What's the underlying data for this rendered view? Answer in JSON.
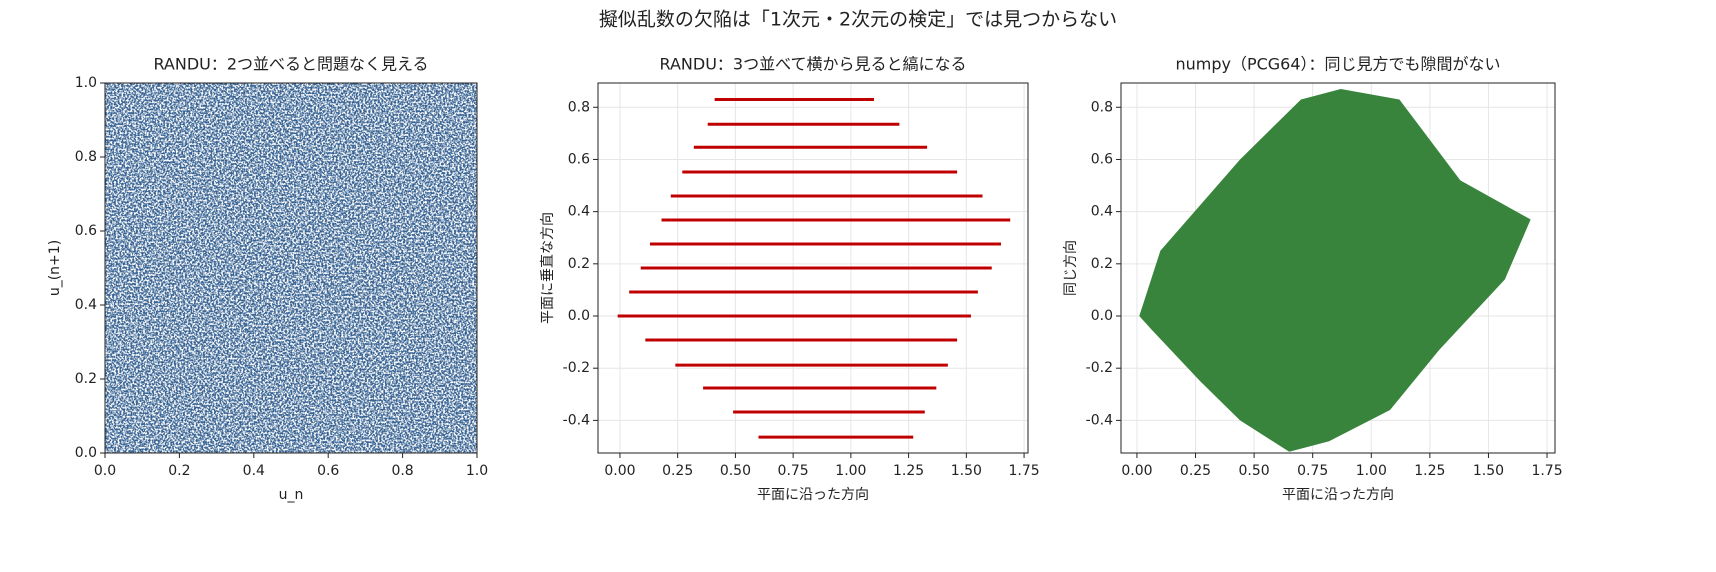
{
  "suptitle": "擬似乱数の欠陥は「1次元・2次元の検定」では見つからない",
  "chart_data": [
    {
      "type": "cloud",
      "title": "RANDU：2つ並べると問題なく見える",
      "xlabel": "u_n",
      "ylabel": "u_(n+1)",
      "color": "#2b5a8c",
      "grid": false,
      "outline_x": [
        0,
        1,
        1,
        0
      ],
      "outline_y": [
        0,
        0,
        1,
        1
      ],
      "xlim": [
        0,
        1
      ],
      "ylim": [
        0,
        1
      ],
      "xticks": [
        {
          "value": 0,
          "label": "0.0"
        },
        0.2,
        0.4,
        0.6,
        0.8,
        {
          "value": 1,
          "label": "1.0"
        }
      ],
      "yticks": [
        {
          "value": 0,
          "label": "0.0"
        },
        0.2,
        0.4,
        0.6,
        0.8,
        {
          "value": 1,
          "label": "1.0"
        }
      ]
    },
    {
      "type": "stripes",
      "title": "RANDU：3つ並べて横から見ると縞になる",
      "xlabel": "平面に沿った方向",
      "ylabel": "平面に垂直な方向",
      "color": "#c00000",
      "grid": true,
      "y": [
        0.83,
        0.735,
        0.647,
        0.552,
        0.46,
        0.368,
        0.276,
        0.184,
        0.092,
        0,
        -0.092,
        -0.188,
        -0.276,
        -0.368,
        -0.464
      ],
      "x_start": [
        0.41,
        0.38,
        0.32,
        0.27,
        0.22,
        0.18,
        0.13,
        0.09,
        0.04,
        -0.01,
        0.11,
        0.24,
        0.36,
        0.49,
        0.6
      ],
      "x_end": [
        1.1,
        1.21,
        1.33,
        1.46,
        1.57,
        1.69,
        1.65,
        1.61,
        1.55,
        1.52,
        1.46,
        1.42,
        1.37,
        1.32,
        1.27
      ],
      "xlim": [
        -0.095,
        1.767
      ],
      "ylim": [
        -0.525,
        0.893
      ],
      "xticks": [
        {
          "value": 0,
          "label": "0.00"
        },
        0.25,
        {
          "value": 0.5,
          "label": "0.50"
        },
        0.75,
        {
          "value": 1,
          "label": "1.00"
        },
        1.25,
        {
          "value": 1.5,
          "label": "1.50"
        },
        1.75
      ],
      "yticks": [
        -0.4,
        -0.2,
        {
          "value": 0,
          "label": "0.0"
        },
        0.2,
        0.4,
        0.6,
        0.8
      ]
    },
    {
      "type": "cloud",
      "title": "numpy（PCG64）：同じ見方でも隙間がない",
      "xlabel": "平面に沿った方向",
      "ylabel": "同じ方向",
      "color": "#2e7d32",
      "grid": true,
      "outline_x": [
        0.01,
        0.1,
        0.44,
        0.7,
        0.87,
        1.12,
        1.38,
        1.68,
        1.57,
        1.29,
        1.08,
        0.82,
        0.65,
        0.44,
        0.27,
        0.06
      ],
      "outline_y": [
        0,
        0.25,
        0.6,
        0.83,
        0.87,
        0.83,
        0.52,
        0.37,
        0.14,
        -0.13,
        -0.36,
        -0.48,
        -0.52,
        -0.4,
        -0.25,
        -0.05
      ],
      "xlim": [
        -0.068,
        1.784
      ],
      "ylim": [
        -0.525,
        0.893
      ],
      "xticks": [
        {
          "value": 0,
          "label": "0.00"
        },
        0.25,
        {
          "value": 0.5,
          "label": "0.50"
        },
        0.75,
        {
          "value": 1,
          "label": "1.00"
        },
        1.25,
        {
          "value": 1.5,
          "label": "1.50"
        },
        1.75
      ],
      "yticks": [
        -0.4,
        -0.2,
        {
          "value": 0,
          "label": "0.0"
        },
        0.2,
        0.4,
        0.6,
        0.8
      ]
    }
  ]
}
